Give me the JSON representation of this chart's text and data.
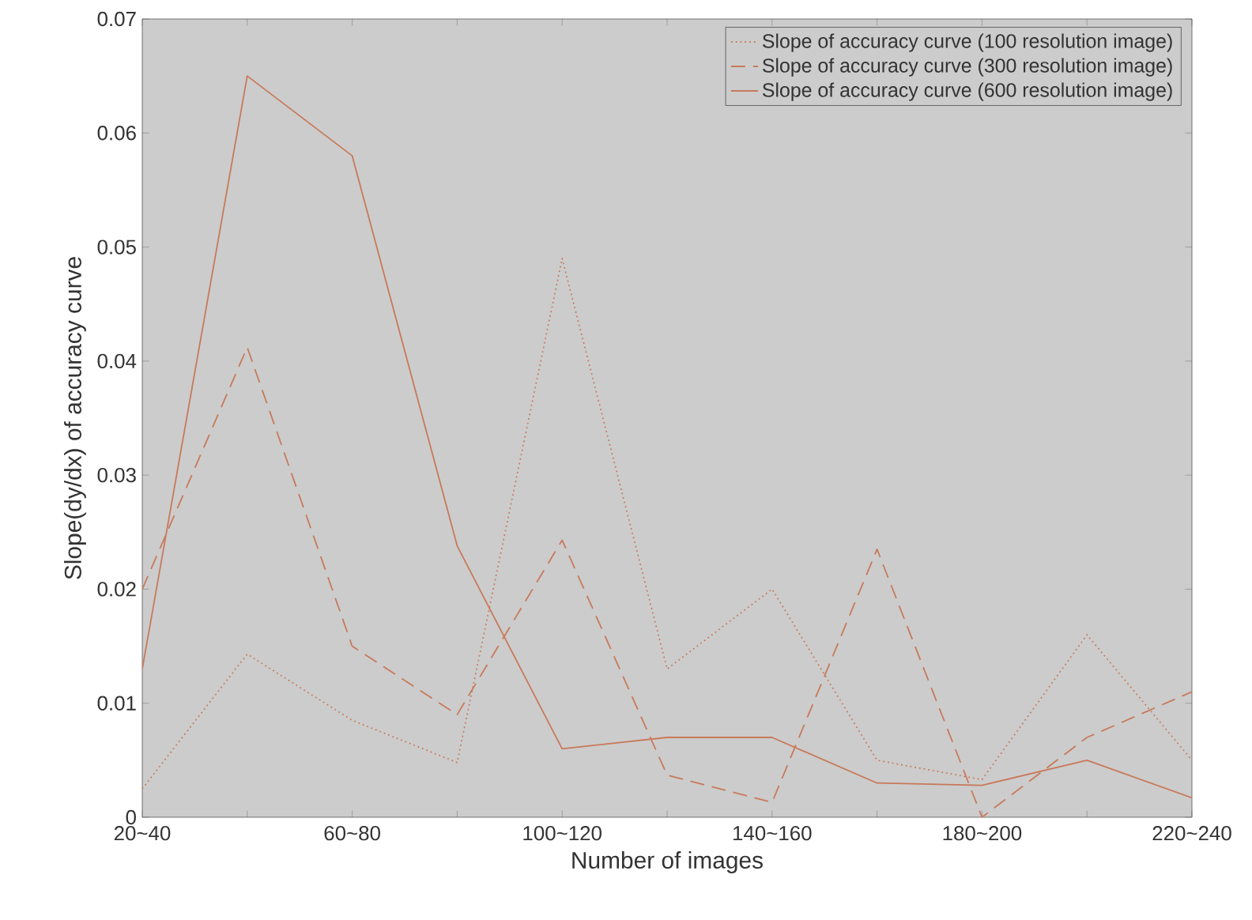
{
  "chart_data": {
    "type": "line",
    "xlabel": "Number of images",
    "ylabel": "Slope(dy/dx) of accuracy curve",
    "categories": [
      "20~40",
      null,
      "60~80",
      null,
      "100~120",
      null,
      "140~160",
      null,
      "180~200",
      null,
      "220~240"
    ],
    "series": [
      {
        "name": "Slope of accuracy curve (100 resolution image)",
        "color": "#c8795a",
        "line_style": "dotted",
        "values": [
          0.0025,
          0.0143,
          0.0085,
          0.0048,
          0.049,
          0.013,
          0.02,
          0.005,
          0.0033,
          0.016,
          0.005
        ]
      },
      {
        "name": "Slope of accuracy curve (300 resolution image)",
        "color": "#c8795a",
        "line_style": "dashed",
        "values": [
          0.02,
          0.0412,
          0.015,
          0.009,
          0.0243,
          0.0037,
          0.0013,
          0.0235,
          0.0,
          0.007,
          0.011
        ]
      },
      {
        "name": "Slope of accuracy curve (600 resolution image)",
        "color": "#c8795a",
        "line_style": "solid",
        "values": [
          0.013,
          0.065,
          0.058,
          0.0238,
          0.006,
          0.007,
          0.007,
          0.003,
          0.0028,
          0.005,
          0.0017
        ]
      }
    ],
    "ylim": [
      0,
      0.07
    ],
    "yticks": [
      0,
      0.01,
      0.02,
      0.03,
      0.04,
      0.05,
      0.06,
      0.07
    ],
    "grid": false,
    "legend": "top right",
    "marker": "none"
  }
}
